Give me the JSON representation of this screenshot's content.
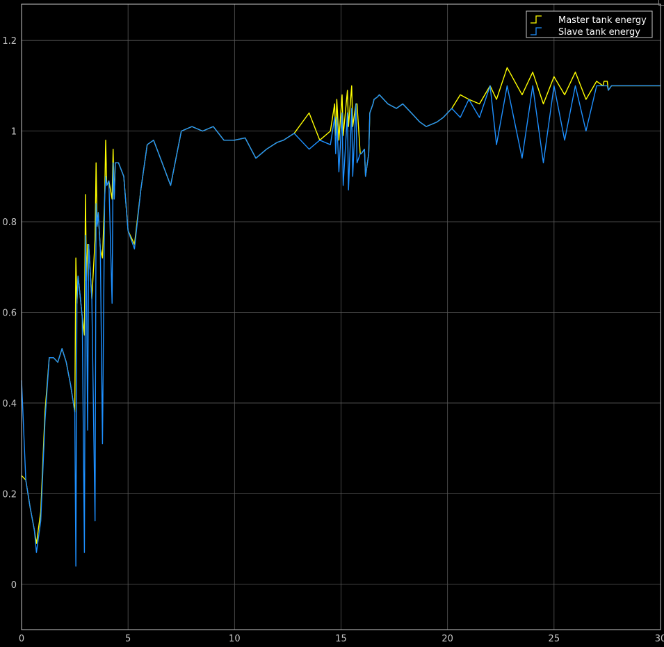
{
  "chart_data": {
    "type": "line",
    "title": "",
    "xlabel": "",
    "ylabel": "",
    "xlim": [
      0,
      30
    ],
    "ylim": [
      -0.1,
      1.28
    ],
    "grid": true,
    "legend_position": "top-right",
    "background": "#000000",
    "grid_color": "#5a5a5a",
    "x_ticks": [
      0,
      5,
      10,
      15,
      20,
      25,
      30
    ],
    "x_tick_labels": [
      "0",
      "5",
      "10",
      "15",
      "20",
      "25",
      "30"
    ],
    "y_ticks": [
      0,
      0.2,
      0.4,
      0.6,
      0.8,
      1,
      1.2
    ],
    "y_tick_labels": [
      "0",
      "0.2",
      "0.4",
      "0.6",
      "0.8",
      "1",
      "1.2"
    ],
    "series": [
      {
        "name": "Master tank energy",
        "color": "#ffff00",
        "x": [
          0,
          0.2,
          0.4,
          0.6,
          0.7,
          0.9,
          1.1,
          1.3,
          1.5,
          1.7,
          1.9,
          2.1,
          2.3,
          2.5,
          2.55,
          2.6,
          2.65,
          2.7,
          2.85,
          2.95,
          3.0,
          3.05,
          3.1,
          3.15,
          3.3,
          3.45,
          3.5,
          3.55,
          3.6,
          3.7,
          3.8,
          3.9,
          3.95,
          4.0,
          4.1,
          4.25,
          4.3,
          4.35,
          4.4,
          4.55,
          4.8,
          5.0,
          5.3,
          5.6,
          5.9,
          6.2,
          6.6,
          7.0,
          7.5,
          8.0,
          8.5,
          9.0,
          9.5,
          10.0,
          10.5,
          11.0,
          11.5,
          12.0,
          12.3,
          12.8,
          13.5,
          14.0,
          14.5,
          14.7,
          14.75,
          14.8,
          14.9,
          15.05,
          15.1,
          15.3,
          15.35,
          15.5,
          15.55,
          15.7,
          15.75,
          15.9,
          15.95,
          16.1,
          16.15,
          16.3,
          16.35,
          16.5,
          16.55,
          16.7,
          16.8,
          17.2,
          17.6,
          17.9,
          18.3,
          18.7,
          19.0,
          19.5,
          19.8,
          20.2,
          20.6,
          21.0,
          21.5,
          22.0,
          22.3,
          22.8,
          23.5,
          24.0,
          24.5,
          25.0,
          25.5,
          26.0,
          26.5,
          27.0,
          27.3,
          27.35,
          27.5,
          27.55,
          27.7,
          27.75,
          27.95,
          28.0,
          28.2,
          28.25,
          28.45,
          28.5,
          28.7,
          28.75,
          28.95,
          29.0,
          29.2,
          29.25,
          29.4,
          29.45,
          29.6,
          29.8,
          30.0
        ],
        "y": [
          0.24,
          0.23,
          0.17,
          0.12,
          0.09,
          0.16,
          0.38,
          0.5,
          0.5,
          0.49,
          0.52,
          0.49,
          0.44,
          0.38,
          0.72,
          0.62,
          0.68,
          0.66,
          0.59,
          0.55,
          0.86,
          0.67,
          0.75,
          0.75,
          0.63,
          0.76,
          0.93,
          0.79,
          0.82,
          0.74,
          0.72,
          0.85,
          0.98,
          0.88,
          0.89,
          0.85,
          0.96,
          0.85,
          0.93,
          0.93,
          0.9,
          0.78,
          0.75,
          0.87,
          0.97,
          0.98,
          0.93,
          0.88,
          1.0,
          1.01,
          1.0,
          1.01,
          0.98,
          0.98,
          0.985,
          0.94,
          0.96,
          0.975,
          0.98,
          0.995,
          1.04,
          0.98,
          1.0,
          1.06,
          0.99,
          1.07,
          0.98,
          1.08,
          0.99,
          1.09,
          1.01,
          1.1,
          1.01,
          1.06,
          1.06,
          0.95,
          0.95,
          0.96,
          0.9,
          0.95,
          1.04,
          1.06,
          1.07,
          1.075,
          1.08,
          1.06,
          1.05,
          1.06,
          1.04,
          1.02,
          1.01,
          1.02,
          1.03,
          1.05,
          1.08,
          1.07,
          1.06,
          1.1,
          1.07,
          1.14,
          1.08,
          1.13,
          1.06,
          1.12,
          1.08,
          1.13,
          1.07,
          1.11,
          1.1,
          1.11,
          1.11,
          1.09,
          1.1,
          1.1,
          1.1,
          1.1,
          1.1,
          1.1,
          1.1,
          1.1,
          1.1,
          1.1,
          1.1,
          1.1,
          1.1,
          1.1,
          1.1,
          1.1,
          1.1,
          1.1,
          1.1
        ]
      },
      {
        "name": "Slave tank energy",
        "color": "#1e90ff",
        "x": [
          0,
          0.2,
          0.4,
          0.6,
          0.7,
          0.9,
          1.1,
          1.3,
          1.5,
          1.7,
          1.9,
          2.1,
          2.3,
          2.5,
          2.55,
          2.6,
          2.65,
          2.7,
          2.85,
          2.95,
          3.0,
          3.05,
          3.1,
          3.15,
          3.3,
          3.45,
          3.5,
          3.55,
          3.6,
          3.7,
          3.8,
          3.9,
          3.95,
          4.0,
          4.1,
          4.25,
          4.3,
          4.35,
          4.4,
          4.55,
          4.8,
          5.0,
          5.3,
          5.6,
          5.9,
          6.2,
          6.6,
          7.0,
          7.5,
          8.0,
          8.5,
          9.0,
          9.5,
          10.0,
          10.5,
          11.0,
          11.5,
          12.0,
          12.3,
          12.8,
          13.5,
          14.0,
          14.5,
          14.7,
          14.75,
          14.8,
          14.9,
          15.05,
          15.1,
          15.3,
          15.35,
          15.5,
          15.55,
          15.7,
          15.75,
          15.9,
          15.95,
          16.1,
          16.15,
          16.3,
          16.35,
          16.5,
          16.55,
          16.7,
          16.8,
          17.2,
          17.6,
          17.9,
          18.3,
          18.7,
          19.0,
          19.5,
          19.8,
          20.2,
          20.6,
          21.0,
          21.5,
          22.0,
          22.3,
          22.8,
          23.5,
          24.0,
          24.5,
          25.0,
          25.5,
          26.0,
          26.5,
          27.0,
          27.3,
          27.35,
          27.5,
          27.55,
          27.7,
          27.75,
          27.95,
          28.0,
          28.2,
          28.25,
          28.45,
          28.5,
          28.7,
          28.75,
          28.95,
          29.0,
          29.2,
          29.25,
          29.4,
          29.45,
          29.6,
          29.8,
          30.0
        ],
        "y": [
          0.45,
          0.23,
          0.17,
          0.12,
          0.07,
          0.14,
          0.36,
          0.5,
          0.5,
          0.49,
          0.52,
          0.49,
          0.44,
          0.38,
          0.04,
          0.62,
          0.68,
          0.66,
          0.59,
          0.07,
          0.77,
          0.67,
          0.34,
          0.75,
          0.63,
          0.14,
          0.84,
          0.79,
          0.82,
          0.74,
          0.31,
          0.85,
          0.9,
          0.88,
          0.89,
          0.62,
          0.93,
          0.85,
          0.93,
          0.93,
          0.9,
          0.78,
          0.74,
          0.87,
          0.97,
          0.98,
          0.93,
          0.88,
          1.0,
          1.01,
          1.0,
          1.01,
          0.98,
          0.98,
          0.985,
          0.94,
          0.96,
          0.975,
          0.98,
          0.995,
          0.96,
          0.98,
          0.97,
          1.03,
          0.95,
          1.03,
          0.91,
          1.04,
          0.88,
          1.04,
          0.87,
          1.05,
          0.9,
          1.06,
          0.93,
          0.95,
          0.95,
          0.96,
          0.9,
          0.95,
          1.04,
          1.06,
          1.07,
          1.075,
          1.08,
          1.06,
          1.05,
          1.06,
          1.04,
          1.02,
          1.01,
          1.02,
          1.03,
          1.05,
          1.03,
          1.07,
          1.03,
          1.1,
          0.97,
          1.1,
          0.94,
          1.1,
          0.93,
          1.1,
          0.98,
          1.1,
          1.0,
          1.1,
          1.1,
          1.1,
          1.1,
          1.09,
          1.1,
          1.1,
          1.1,
          1.1,
          1.1,
          1.1,
          1.1,
          1.1,
          1.1,
          1.1,
          1.1,
          1.1,
          1.1,
          1.1,
          1.1,
          1.1,
          1.1,
          1.1,
          1.1
        ]
      }
    ]
  }
}
